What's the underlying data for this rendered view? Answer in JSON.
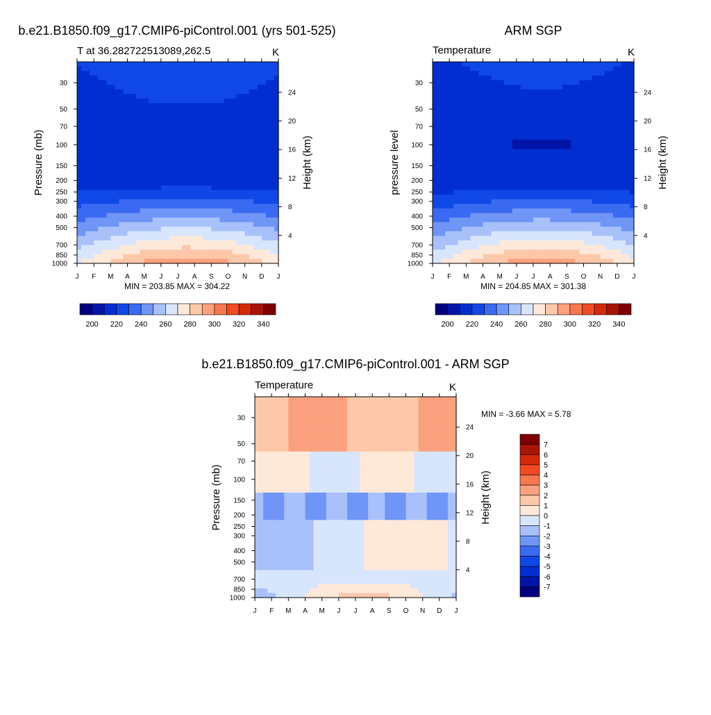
{
  "panels": [
    {
      "main_title": "b.e21.B1850.f09_g17.CMIP6-piControl.001 (yrs 501-525)",
      "left_title": "T at 36.282722513089,262.5",
      "units": "K",
      "ylabel": "Pressure (mb)",
      "rlabel": "Height (km)",
      "minmax": "MIN = 203.85 MAX = 304.22"
    },
    {
      "main_title": "ARM SGP",
      "left_title": "Temperature",
      "units": "K",
      "ylabel": "pressure level",
      "rlabel": "Height (km)",
      "minmax": "MIN = 204.85 MAX = 301.38"
    },
    {
      "main_title": "b.e21.B1850.f09_g17.CMIP6-piControl.001 - ARM SGP",
      "left_title": "Temperature",
      "units": "K",
      "ylabel": "Pressure (mb)",
      "rlabel": "Height (km)",
      "minmax": "MIN =   -3.66 MAX =    5.78"
    }
  ],
  "chart_data": [
    {
      "type": "heatmap",
      "title": "b.e21.B1850.f09_g17.CMIP6-piControl.001 (yrs 501-525)",
      "subtitle": "T at 36.282722513089,262.5",
      "units": "K",
      "ylabel": "Pressure (mb)",
      "y2label": "Height (km)",
      "x": [
        "J",
        "F",
        "M",
        "A",
        "M",
        "J",
        "J",
        "A",
        "S",
        "O",
        "N",
        "D",
        "J"
      ],
      "y_pressure_mb": [
        30,
        50,
        70,
        100,
        150,
        200,
        250,
        300,
        400,
        500,
        700,
        850,
        1000
      ],
      "y2_height_km": [
        24,
        20,
        16,
        12,
        8,
        4
      ],
      "y_scale": "log",
      "color_levels": [
        200,
        210,
        220,
        230,
        240,
        250,
        260,
        270,
        280,
        290,
        300,
        310,
        320,
        330,
        340
      ],
      "colorbar_labels": [
        200,
        220,
        240,
        260,
        280,
        300,
        320,
        340
      ],
      "min": 203.85,
      "max": 304.22
    },
    {
      "type": "heatmap",
      "title": "ARM SGP",
      "subtitle": "Temperature",
      "units": "K",
      "ylabel": "pressure level",
      "y2label": "Height (km)",
      "x": [
        "J",
        "F",
        "M",
        "A",
        "M",
        "J",
        "J",
        "A",
        "S",
        "O",
        "N",
        "D",
        "J"
      ],
      "y_pressure_mb": [
        30,
        50,
        70,
        100,
        150,
        200,
        250,
        300,
        400,
        500,
        700,
        850,
        1000
      ],
      "y2_height_km": [
        24,
        20,
        16,
        12,
        8,
        4
      ],
      "y_scale": "log",
      "color_levels": [
        200,
        210,
        220,
        230,
        240,
        250,
        260,
        270,
        280,
        290,
        300,
        310,
        320,
        330,
        340
      ],
      "colorbar_labels": [
        200,
        220,
        240,
        260,
        280,
        300,
        320,
        340
      ],
      "min": 204.85,
      "max": 301.38
    },
    {
      "type": "heatmap",
      "title": "b.e21.B1850.f09_g17.CMIP6-piControl.001 - ARM SGP",
      "subtitle": "Temperature",
      "units": "K",
      "ylabel": "Pressure (mb)",
      "y2label": "Height (km)",
      "x": [
        "J",
        "F",
        "M",
        "A",
        "M",
        "J",
        "J",
        "A",
        "S",
        "O",
        "N",
        "D",
        "J"
      ],
      "y_pressure_mb": [
        30,
        50,
        70,
        100,
        150,
        200,
        250,
        300,
        400,
        500,
        700,
        850,
        1000
      ],
      "y2_height_km": [
        24,
        20,
        16,
        12,
        8,
        4
      ],
      "y_scale": "log",
      "color_levels": [
        -7,
        -6,
        -5,
        -4,
        -3,
        -2,
        -1,
        0,
        1,
        2,
        3,
        4,
        5,
        6,
        7
      ],
      "colorbar_labels": [
        7,
        6,
        5,
        4,
        3,
        2,
        1,
        0,
        -1,
        -2,
        -3,
        -4,
        -5,
        -6,
        -7
      ],
      "min": -3.66,
      "max": 5.78
    }
  ],
  "palette": [
    "#00007f",
    "#0015a8",
    "#002ed1",
    "#1048e8",
    "#3a6af2",
    "#6f95f7",
    "#a8c1fb",
    "#d8e6fd",
    "#fee9d9",
    "#fcc8a9",
    "#fba17e",
    "#f8774e",
    "#f24a22",
    "#d42a0a",
    "#a81406",
    "#7f0000"
  ]
}
